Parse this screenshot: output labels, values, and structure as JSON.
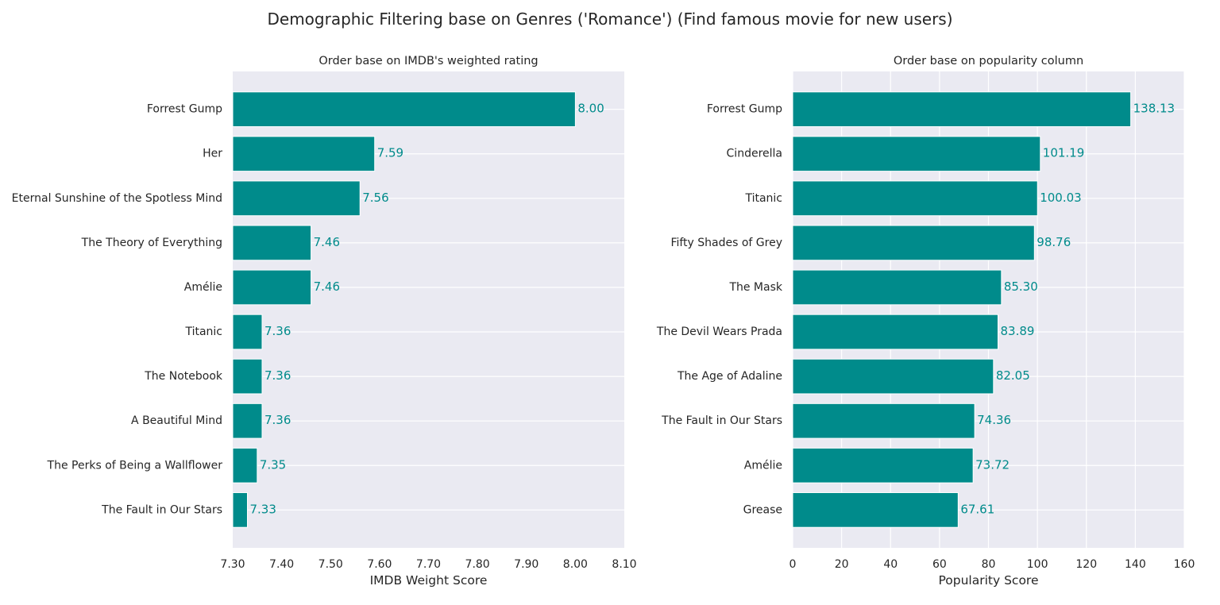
{
  "figure": {
    "title": "Demographic Filtering base on Genres ('Romance') (Find famous movie for new users)"
  },
  "chart_data": [
    {
      "type": "bar",
      "orientation": "horizontal",
      "title": "Order base on IMDB's weighted rating",
      "xlabel": "IMDB Weight Score",
      "ylabel": "",
      "categories": [
        "Forrest Gump",
        "Her",
        "Eternal Sunshine of the Spotless Mind",
        "The Theory of Everything",
        "Amélie",
        "Titanic",
        "The Notebook",
        "A Beautiful Mind",
        "The Perks of Being a Wallflower",
        "The Fault in Our Stars"
      ],
      "values": [
        8.0,
        7.59,
        7.56,
        7.46,
        7.46,
        7.36,
        7.36,
        7.36,
        7.35,
        7.33
      ],
      "value_labels": [
        "8.00",
        "7.59",
        "7.56",
        "7.46",
        "7.46",
        "7.36",
        "7.36",
        "7.36",
        "7.35",
        "7.33"
      ],
      "xlim": [
        7.3,
        8.1
      ],
      "xticks": [
        7.3,
        7.4,
        7.5,
        7.6,
        7.7,
        7.8,
        7.9,
        8.0,
        8.1
      ],
      "xtick_labels": [
        "7.30",
        "7.40",
        "7.50",
        "7.60",
        "7.70",
        "7.80",
        "7.90",
        "8.00",
        "8.10"
      ],
      "grid": "horizontal",
      "bar_color": "#008b8b",
      "label_color": "#008b8b",
      "background": "#eaeaf2"
    },
    {
      "type": "bar",
      "orientation": "horizontal",
      "title": "Order base on popularity column",
      "xlabel": "Popularity Score",
      "ylabel": "",
      "categories": [
        "Forrest Gump",
        "Cinderella",
        "Titanic",
        "Fifty Shades of Grey",
        "The Mask",
        "The Devil Wears Prada",
        "The Age of Adaline",
        "The Fault in Our Stars",
        "Amélie",
        "Grease"
      ],
      "values": [
        138.13,
        101.19,
        100.03,
        98.76,
        85.3,
        83.89,
        82.05,
        74.36,
        73.72,
        67.61
      ],
      "value_labels": [
        "138.13",
        "101.19",
        "100.03",
        "98.76",
        "85.30",
        "83.89",
        "82.05",
        "74.36",
        "73.72",
        "67.61"
      ],
      "xlim": [
        0,
        160
      ],
      "xticks": [
        0,
        20,
        40,
        60,
        80,
        100,
        120,
        140,
        160
      ],
      "xtick_labels": [
        "0",
        "20",
        "40",
        "60",
        "80",
        "100",
        "120",
        "140",
        "160"
      ],
      "grid": "both",
      "bar_color": "#008b8b",
      "label_color": "#008b8b",
      "background": "#eaeaf2"
    }
  ]
}
